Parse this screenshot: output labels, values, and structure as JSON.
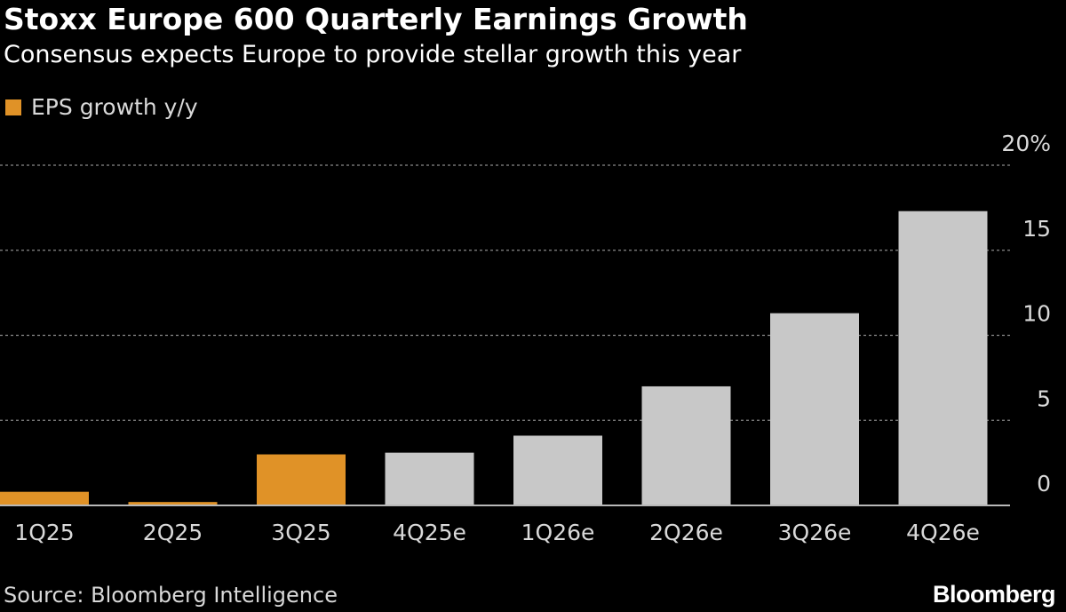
{
  "colors": {
    "background": "#000000",
    "actual": "#e09227",
    "estimate": "#c8c8c8",
    "grid": "#8a8a8a",
    "axis": "#b8b8b8",
    "text": "#ffffff",
    "muted_text": "#d9d9d9"
  },
  "header": {
    "title": "Stoxx Europe 600 Quarterly Earnings Growth",
    "subtitle": "Consensus expects Europe to provide stellar growth this year"
  },
  "legend": {
    "label": "EPS growth y/y",
    "swatch_color": "#e09227"
  },
  "footer": {
    "source": "Source: Bloomberg Intelligence",
    "brand": "Bloomberg"
  },
  "chart_data": {
    "type": "bar",
    "title": "Stoxx Europe 600 Quarterly Earnings Growth",
    "subtitle": "Consensus expects Europe to provide stellar growth this year",
    "xlabel": "",
    "ylabel": "",
    "categories": [
      "1Q25",
      "2Q25",
      "3Q25",
      "4Q25e",
      "1Q26e",
      "2Q26e",
      "3Q26e",
      "4Q26e"
    ],
    "series": [
      {
        "name": "EPS growth y/y",
        "values": [
          0.8,
          0.2,
          3.0,
          3.1,
          4.1,
          7.0,
          11.3,
          17.3
        ]
      }
    ],
    "bar_kind": [
      "actual",
      "actual",
      "actual",
      "estimate",
      "estimate",
      "estimate",
      "estimate",
      "estimate"
    ],
    "ylim": [
      0,
      20
    ],
    "yticks": [
      0,
      5,
      10,
      15,
      20
    ],
    "ytick_labels": [
      "0",
      "5",
      "10",
      "15",
      "20%"
    ],
    "y_axis_side": "right",
    "grid": true,
    "grid_style": "dashed",
    "legend_position": "top-left"
  }
}
